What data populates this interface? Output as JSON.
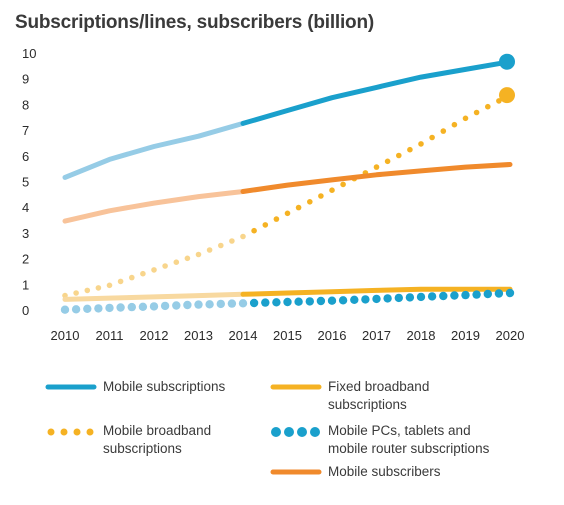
{
  "chart_data": {
    "type": "line",
    "title": "Subscriptions/lines, subscribers (billion)",
    "x": [
      2010,
      2011,
      2012,
      2013,
      2014,
      2015,
      2016,
      2017,
      2018,
      2019,
      2020
    ],
    "ylim": [
      0,
      10
    ],
    "yticks": [
      "0",
      "1",
      "2",
      "3",
      "4",
      "5",
      "6",
      "7",
      "8",
      "9",
      "10"
    ],
    "xticks": [
      "2010",
      "2011",
      "2012",
      "2013",
      "2014",
      "2015",
      "2016",
      "2017",
      "2018",
      "2019",
      "2020"
    ],
    "historical_until": 2014,
    "grid": false,
    "legend_position": "bottom",
    "series": [
      {
        "name": "Mobile subscriptions",
        "color": "#1aa0cc",
        "light_color": "#96cce6",
        "style": "solid",
        "end_marker": true,
        "x": [
          2010,
          2011,
          2012,
          2013,
          2014,
          2015,
          2016,
          2017,
          2018,
          2019,
          2020
        ],
        "values": [
          5.2,
          5.9,
          6.4,
          6.8,
          7.3,
          7.8,
          8.3,
          8.7,
          9.1,
          9.4,
          9.7
        ]
      },
      {
        "name": "Mobile broadband subscriptions",
        "color": "#f5b223",
        "light_color": "#f8d58c",
        "style": "dotted",
        "end_marker": true,
        "x": [
          2010,
          2011,
          2012,
          2013,
          2014,
          2015,
          2016,
          2017,
          2018,
          2019,
          2020
        ],
        "values": [
          0.6,
          1.0,
          1.6,
          2.2,
          2.9,
          3.8,
          4.7,
          5.6,
          6.5,
          7.5,
          8.4
        ]
      },
      {
        "name": "Mobile subscribers",
        "color": "#f08a2c",
        "light_color": "#f8c39a",
        "style": "solid",
        "end_marker": false,
        "x": [
          2010,
          2011,
          2012,
          2013,
          2014,
          2015,
          2016,
          2017,
          2018,
          2019,
          2020
        ],
        "values": [
          3.5,
          3.9,
          4.2,
          4.45,
          4.65,
          4.9,
          5.1,
          5.3,
          5.45,
          5.6,
          5.7
        ]
      },
      {
        "name": "Fixed broadband subscriptions",
        "color": "#f5b223",
        "light_color": "#f8d9a0",
        "style": "solid",
        "end_marker": false,
        "x": [
          2010,
          2011,
          2012,
          2013,
          2014,
          2015,
          2016,
          2017,
          2018,
          2019,
          2020
        ],
        "values": [
          0.45,
          0.5,
          0.55,
          0.6,
          0.65,
          0.7,
          0.75,
          0.8,
          0.85,
          0.85,
          0.85
        ]
      },
      {
        "name": "Mobile PCs, tablets and mobile router subscriptions",
        "color": "#1aa0cc",
        "light_color": "#96cce6",
        "style": "dotted",
        "end_marker": false,
        "x": [
          2010,
          2011,
          2012,
          2013,
          2014,
          2015,
          2016,
          2017,
          2018,
          2019,
          2020
        ],
        "values": [
          0.05,
          0.12,
          0.18,
          0.25,
          0.3,
          0.35,
          0.4,
          0.47,
          0.55,
          0.62,
          0.7
        ]
      }
    ]
  },
  "legend": {
    "items": [
      {
        "series": 0,
        "label": "Mobile subscriptions"
      },
      {
        "series": 3,
        "label": "Fixed broadband subscriptions"
      },
      {
        "series": 1,
        "label": "Mobile broadband subscriptions"
      },
      {
        "series": 4,
        "label": "Mobile PCs, tablets and mobile router subscriptions"
      },
      {
        "series": 2,
        "label": "Mobile subscribers"
      }
    ]
  }
}
